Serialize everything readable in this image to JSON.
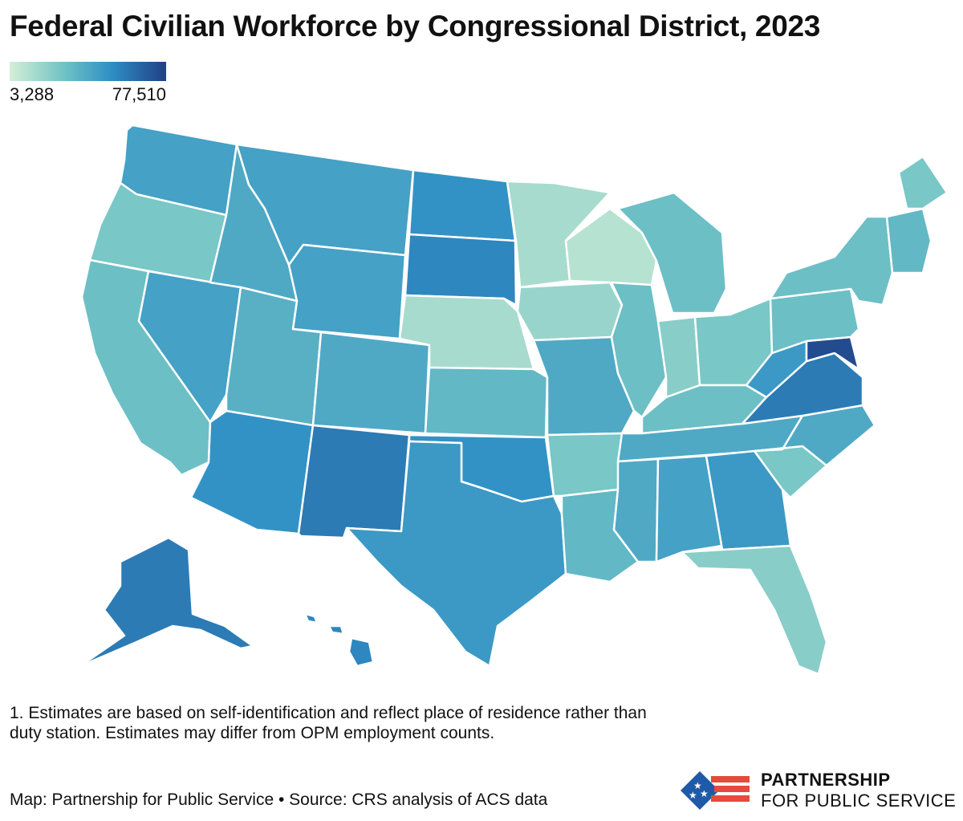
{
  "title": "Federal Civilian Workforce by Congressional District, 2023",
  "legend": {
    "min_label": "3,288",
    "max_label": "77,510",
    "min_value": 3288,
    "max_value": 77510,
    "colors": [
      "#d5efd6",
      "#6fc2c5",
      "#2f8fc5",
      "#213f86"
    ]
  },
  "map": {
    "colors": {
      "state_border": "#ffffff",
      "ocean": "#ffffff"
    },
    "regions": [
      {
        "id": "WA",
        "level": 0.55
      },
      {
        "id": "OR",
        "level": 0.3
      },
      {
        "id": "CA",
        "level": 0.35
      },
      {
        "id": "NV",
        "level": 0.55
      },
      {
        "id": "ID",
        "level": 0.5
      },
      {
        "id": "MT",
        "level": 0.55
      },
      {
        "id": "WY",
        "level": 0.55
      },
      {
        "id": "UT",
        "level": 0.45
      },
      {
        "id": "AZ",
        "level": 0.65
      },
      {
        "id": "CO",
        "level": 0.5
      },
      {
        "id": "NM",
        "level": 0.75
      },
      {
        "id": "ND",
        "level": 0.65
      },
      {
        "id": "SD",
        "level": 0.7
      },
      {
        "id": "NE",
        "level": 0.15
      },
      {
        "id": "KS",
        "level": 0.4
      },
      {
        "id": "OK",
        "level": 0.65
      },
      {
        "id": "TX",
        "level": 0.6
      },
      {
        "id": "MN",
        "level": 0.15
      },
      {
        "id": "IA",
        "level": 0.2
      },
      {
        "id": "MO",
        "level": 0.5
      },
      {
        "id": "AR",
        "level": 0.3
      },
      {
        "id": "LA",
        "level": 0.4
      },
      {
        "id": "WI",
        "level": 0.1
      },
      {
        "id": "IL",
        "level": 0.35
      },
      {
        "id": "MI",
        "level": 0.35
      },
      {
        "id": "IN",
        "level": 0.25
      },
      {
        "id": "OH",
        "level": 0.3
      },
      {
        "id": "KY",
        "level": 0.35
      },
      {
        "id": "TN",
        "level": 0.5
      },
      {
        "id": "MS",
        "level": 0.5
      },
      {
        "id": "AL",
        "level": 0.55
      },
      {
        "id": "GA",
        "level": 0.6
      },
      {
        "id": "FL",
        "level": 0.25
      },
      {
        "id": "SC",
        "level": 0.3
      },
      {
        "id": "NC",
        "level": 0.5
      },
      {
        "id": "VA",
        "level": 0.75
      },
      {
        "id": "WV",
        "level": 0.6
      },
      {
        "id": "PA",
        "level": 0.35
      },
      {
        "id": "NY",
        "level": 0.35
      },
      {
        "id": "ME",
        "level": 0.3
      },
      {
        "id": "NE-REGION",
        "level": 0.4
      },
      {
        "id": "MD",
        "level": 0.95
      },
      {
        "id": "AK",
        "level": 0.75
      },
      {
        "id": "HI",
        "level": 0.7
      }
    ]
  },
  "footnote": "1. Estimates are based on self-identification and reflect place of residence rather than duty station. Estimates may differ from OPM employment counts.",
  "credit": "Map: Partnership for Public Service • Source: CRS analysis of ACS data",
  "logo": {
    "line1": "PARTNERSHIP",
    "line2": "FOR PUBLIC SERVICE",
    "colors": {
      "blue": "#1f5aa8",
      "red": "#e64a3b"
    }
  }
}
